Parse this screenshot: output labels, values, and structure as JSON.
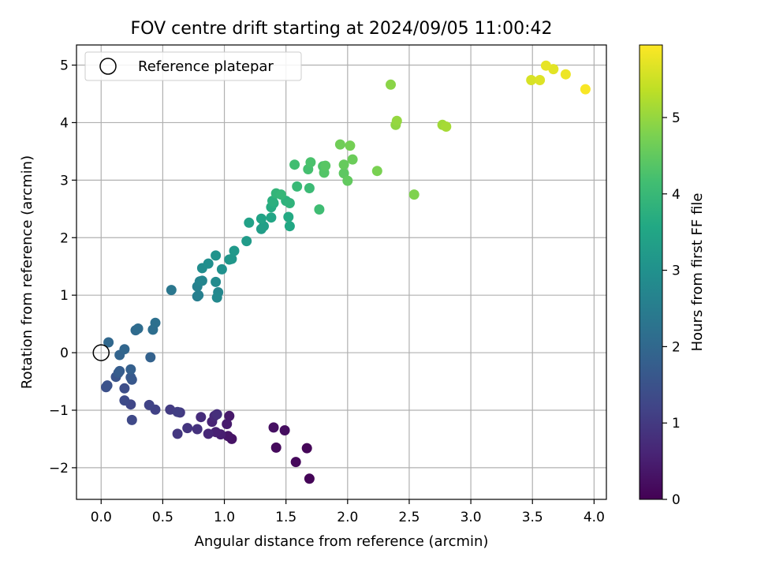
{
  "chart_data": {
    "type": "scatter",
    "title": "FOV centre drift starting at 2024/09/05 11:00:42",
    "xlabel": "Angular distance from reference (arcmin)",
    "ylabel": "Rotation from reference (arcmin)",
    "xlim": [
      -0.2,
      4.1
    ],
    "ylim": [
      -2.55,
      5.35
    ],
    "xticks": [
      0.0,
      0.5,
      1.0,
      1.5,
      2.0,
      2.5,
      3.0,
      3.5,
      4.0
    ],
    "xtick_labels": [
      "0.0",
      "0.5",
      "1.0",
      "1.5",
      "2.0",
      "2.5",
      "3.0",
      "3.5",
      "4.0"
    ],
    "yticks": [
      -2,
      -1,
      0,
      1,
      2,
      3,
      4,
      5
    ],
    "ytick_labels": [
      "−2",
      "−1",
      "0",
      "1",
      "2",
      "3",
      "4",
      "5"
    ],
    "grid": true,
    "legend": {
      "placement": "top-left",
      "entries": [
        {
          "label": "Reference platepar",
          "marker": "open-circle"
        }
      ]
    },
    "colorbar": {
      "label": "Hours from first FF file",
      "colormap": "viridis",
      "range": [
        0,
        5.95
      ],
      "ticks": [
        0,
        1,
        2,
        3,
        4,
        5
      ],
      "tick_labels": [
        "0",
        "1",
        "2",
        "3",
        "4",
        "5"
      ]
    },
    "reference_point": {
      "x": 0.0,
      "y": 0.0
    },
    "points": [
      [
        1.69,
        -2.19,
        0.05
      ],
      [
        1.67,
        -1.66,
        0.08
      ],
      [
        1.58,
        -1.9,
        0.12
      ],
      [
        1.42,
        -1.65,
        0.15
      ],
      [
        1.49,
        -1.35,
        0.2
      ],
      [
        1.4,
        -1.3,
        0.25
      ],
      [
        1.06,
        -1.5,
        0.3
      ],
      [
        1.03,
        -1.45,
        0.35
      ],
      [
        1.04,
        -1.1,
        0.4
      ],
      [
        1.02,
        -1.24,
        0.45
      ],
      [
        0.97,
        -1.42,
        0.5
      ],
      [
        0.93,
        -1.38,
        0.55
      ],
      [
        0.9,
        -1.2,
        0.6
      ],
      [
        0.87,
        -1.41,
        0.65
      ],
      [
        0.92,
        -1.1,
        0.7
      ],
      [
        0.81,
        -1.12,
        0.75
      ],
      [
        0.94,
        -1.07,
        0.8
      ],
      [
        0.78,
        -1.33,
        0.85
      ],
      [
        0.7,
        -1.31,
        0.9
      ],
      [
        0.62,
        -1.41,
        0.95
      ],
      [
        0.64,
        -1.04,
        1.0
      ],
      [
        0.56,
        -0.99,
        1.05
      ],
      [
        0.62,
        -1.03,
        1.1
      ],
      [
        0.44,
        -0.99,
        1.15
      ],
      [
        0.39,
        -0.91,
        1.2
      ],
      [
        0.24,
        -0.9,
        1.25
      ],
      [
        0.25,
        -1.17,
        1.3
      ],
      [
        0.19,
        -0.83,
        1.35
      ],
      [
        0.19,
        -0.62,
        1.4
      ],
      [
        0.04,
        -0.6,
        1.45
      ],
      [
        0.05,
        -0.57,
        1.5
      ],
      [
        0.12,
        -0.42,
        1.55
      ],
      [
        0.25,
        -0.47,
        1.6
      ],
      [
        0.24,
        -0.43,
        1.65
      ],
      [
        0.14,
        -0.35,
        1.7
      ],
      [
        0.15,
        -0.32,
        1.75
      ],
      [
        0.24,
        -0.29,
        1.8
      ],
      [
        0.4,
        -0.08,
        1.85
      ],
      [
        0.15,
        -0.04,
        1.9
      ],
      [
        0.19,
        0.06,
        1.95
      ],
      [
        0.06,
        0.18,
        2.0
      ],
      [
        0.28,
        0.39,
        2.05
      ],
      [
        0.3,
        0.42,
        2.1
      ],
      [
        0.42,
        0.4,
        2.15
      ],
      [
        0.44,
        0.52,
        2.2
      ],
      [
        0.57,
        1.09,
        2.35
      ],
      [
        0.78,
        0.98,
        2.5
      ],
      [
        0.79,
        1.0,
        2.55
      ],
      [
        0.78,
        1.15,
        2.6
      ],
      [
        0.8,
        1.24,
        2.65
      ],
      [
        0.82,
        1.25,
        2.7
      ],
      [
        0.95,
        1.05,
        2.75
      ],
      [
        0.94,
        0.96,
        2.8
      ],
      [
        0.93,
        1.23,
        2.85
      ],
      [
        0.82,
        1.47,
        2.9
      ],
      [
        0.87,
        1.55,
        2.95
      ],
      [
        0.98,
        1.45,
        3.0
      ],
      [
        0.93,
        1.69,
        3.05
      ],
      [
        1.04,
        1.62,
        3.1
      ],
      [
        1.06,
        1.63,
        3.15
      ],
      [
        1.08,
        1.77,
        3.2
      ],
      [
        1.18,
        1.94,
        3.25
      ],
      [
        1.3,
        2.15,
        3.3
      ],
      [
        1.32,
        2.2,
        3.35
      ],
      [
        1.2,
        2.26,
        3.4
      ],
      [
        1.3,
        2.33,
        3.45
      ],
      [
        1.38,
        2.35,
        3.5
      ],
      [
        1.53,
        2.2,
        3.55
      ],
      [
        1.52,
        2.36,
        3.6
      ],
      [
        1.38,
        2.53,
        3.65
      ],
      [
        1.4,
        2.6,
        3.7
      ],
      [
        1.39,
        2.64,
        3.75
      ],
      [
        1.5,
        2.64,
        3.8
      ],
      [
        1.53,
        2.6,
        3.85
      ],
      [
        1.42,
        2.77,
        3.9
      ],
      [
        1.46,
        2.75,
        3.95
      ],
      [
        1.59,
        2.89,
        4.0
      ],
      [
        1.69,
        2.86,
        4.05
      ],
      [
        1.77,
        2.49,
        4.1
      ],
      [
        1.57,
        3.27,
        4.15
      ],
      [
        1.68,
        3.19,
        4.2
      ],
      [
        1.7,
        3.31,
        4.25
      ],
      [
        1.8,
        3.24,
        4.3
      ],
      [
        1.81,
        3.13,
        4.35
      ],
      [
        1.82,
        3.25,
        4.4
      ],
      [
        1.97,
        3.12,
        4.45
      ],
      [
        2.0,
        2.99,
        4.5
      ],
      [
        1.97,
        3.27,
        4.55
      ],
      [
        2.04,
        3.36,
        4.6
      ],
      [
        1.94,
        3.62,
        4.65
      ],
      [
        2.02,
        3.6,
        4.7
      ],
      [
        2.24,
        3.16,
        4.75
      ],
      [
        2.54,
        2.75,
        4.8
      ],
      [
        2.35,
        4.66,
        4.9
      ],
      [
        2.39,
        3.96,
        4.95
      ],
      [
        2.4,
        4.03,
        5.0
      ],
      [
        2.77,
        3.96,
        5.1
      ],
      [
        2.8,
        3.93,
        5.15
      ],
      [
        3.49,
        4.74,
        5.6
      ],
      [
        3.56,
        4.74,
        5.65
      ],
      [
        3.67,
        4.93,
        5.7
      ],
      [
        3.61,
        4.99,
        5.75
      ],
      [
        3.77,
        4.84,
        5.8
      ],
      [
        3.93,
        4.58,
        5.9
      ]
    ]
  }
}
